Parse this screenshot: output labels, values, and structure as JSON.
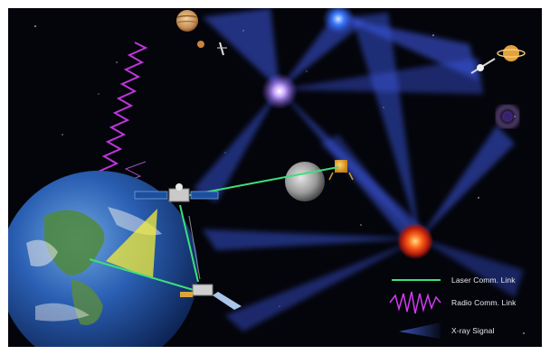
{
  "legend": {
    "items": [
      {
        "label": "Laser Comm. Link",
        "symbol": "green-line",
        "color": "#3ddf7a"
      },
      {
        "label": "Radio Comm. Link",
        "symbol": "magenta-wave",
        "color": "#d23cf0"
      },
      {
        "label": "X-ray Signal",
        "symbol": "blue-beam",
        "color": "#4d6cf0"
      }
    ]
  },
  "colors": {
    "space_background": "#04050b",
    "xray_beam": "#3a55e0",
    "laser_link": "#3ddf7a",
    "radio_link": "#d23cf0",
    "pulsar_source": "#ff5a1a",
    "earth_ocean": "#1f4fa8"
  },
  "objects": [
    {
      "name": "jupiter",
      "kind": "planet"
    },
    {
      "name": "mars",
      "kind": "planet"
    },
    {
      "name": "moon",
      "kind": "moon"
    },
    {
      "name": "earth",
      "kind": "planet"
    },
    {
      "name": "relay-satellite",
      "kind": "spacecraft"
    },
    {
      "name": "lower-satellite",
      "kind": "spacecraft"
    },
    {
      "name": "lunar-lander",
      "kind": "spacecraft"
    },
    {
      "name": "deep-space-probe",
      "kind": "spacecraft"
    },
    {
      "name": "saturn",
      "kind": "planet"
    },
    {
      "name": "pulsar-source",
      "kind": "xray-source"
    }
  ]
}
